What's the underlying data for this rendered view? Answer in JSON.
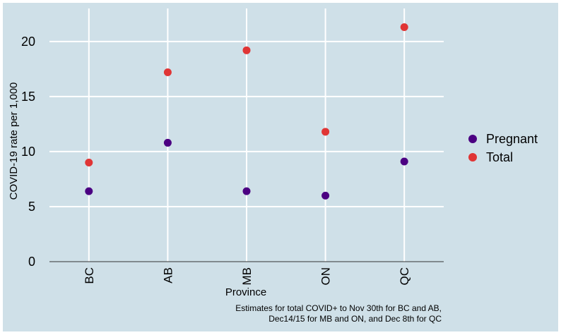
{
  "chart_data": {
    "type": "scatter",
    "title": "",
    "xlabel": "Province",
    "ylabel": "COVID-19 rate per 1,000",
    "categories": [
      "BC",
      "AB",
      "MB",
      "ON",
      "QC"
    ],
    "ylim": [
      0,
      23
    ],
    "yticks": [
      0,
      5,
      10,
      15,
      20
    ],
    "grid": true,
    "legend_position": "right",
    "series": [
      {
        "name": "Pregnant",
        "color": "#4b0082",
        "values": [
          6.4,
          10.8,
          6.4,
          6.0,
          9.1
        ]
      },
      {
        "name": "Total",
        "color": "#e03535",
        "values": [
          9.0,
          17.2,
          19.2,
          11.8,
          21.3
        ]
      }
    ],
    "caption_lines": [
      "Estimates for total COVID+ to Nov 30th for BC and AB,",
      "Dec14/15 for MB and ON, and Dec 8th for QC"
    ],
    "background": "#cfe0e8"
  }
}
